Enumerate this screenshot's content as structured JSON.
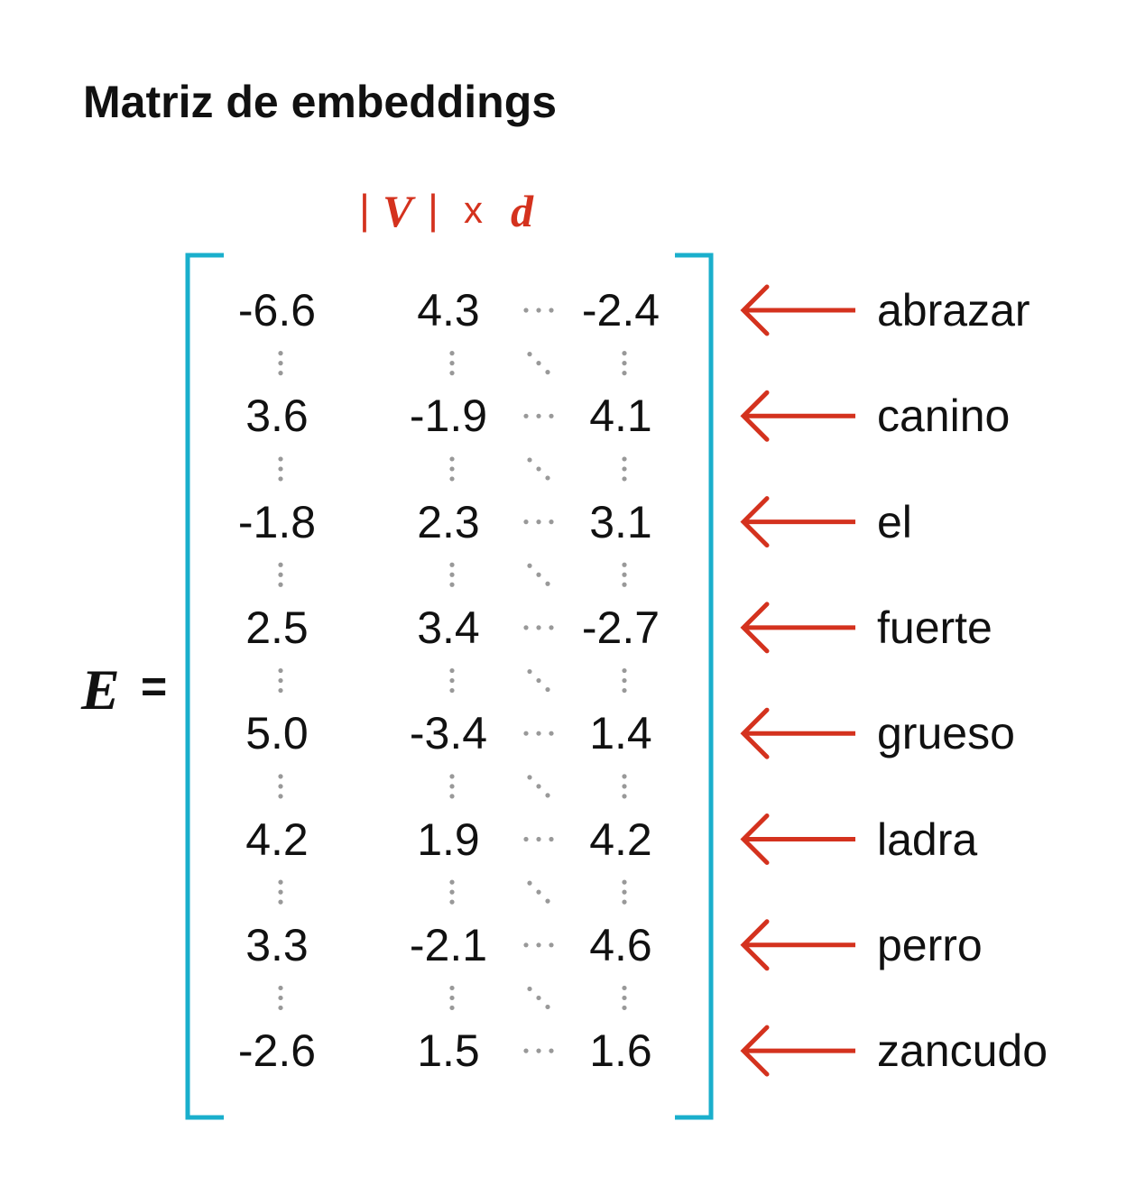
{
  "title": "Matriz de embeddings",
  "dimension_label": {
    "bar_left": "|",
    "V": "V",
    "bar_right": "|",
    "x": "x",
    "d": "d"
  },
  "lhs": {
    "symbol": "E",
    "equals": "="
  },
  "colors": {
    "bracket": "#1aafcc",
    "arrow": "#d4321e",
    "dots": "#999999",
    "dim_label": "#d4321e"
  },
  "rows": [
    {
      "word": "abrazar",
      "values": [
        "-6.6",
        "4.3",
        "-2.4"
      ]
    },
    {
      "word": "canino",
      "values": [
        "3.6",
        "-1.9",
        "4.1"
      ]
    },
    {
      "word": "el",
      "values": [
        "-1.8",
        "2.3",
        "3.1"
      ]
    },
    {
      "word": "fuerte",
      "values": [
        "2.5",
        "3.4",
        "-2.7"
      ]
    },
    {
      "word": "grueso",
      "values": [
        "5.0",
        "-3.4",
        "1.4"
      ]
    },
    {
      "word": "ladra",
      "values": [
        "4.2",
        "1.9",
        "4.2"
      ]
    },
    {
      "word": "perro",
      "values": [
        "3.3",
        "-2.1",
        "4.6"
      ]
    },
    {
      "word": "zancudo",
      "values": [
        "-2.6",
        "1.5",
        "1.6"
      ]
    }
  ]
}
